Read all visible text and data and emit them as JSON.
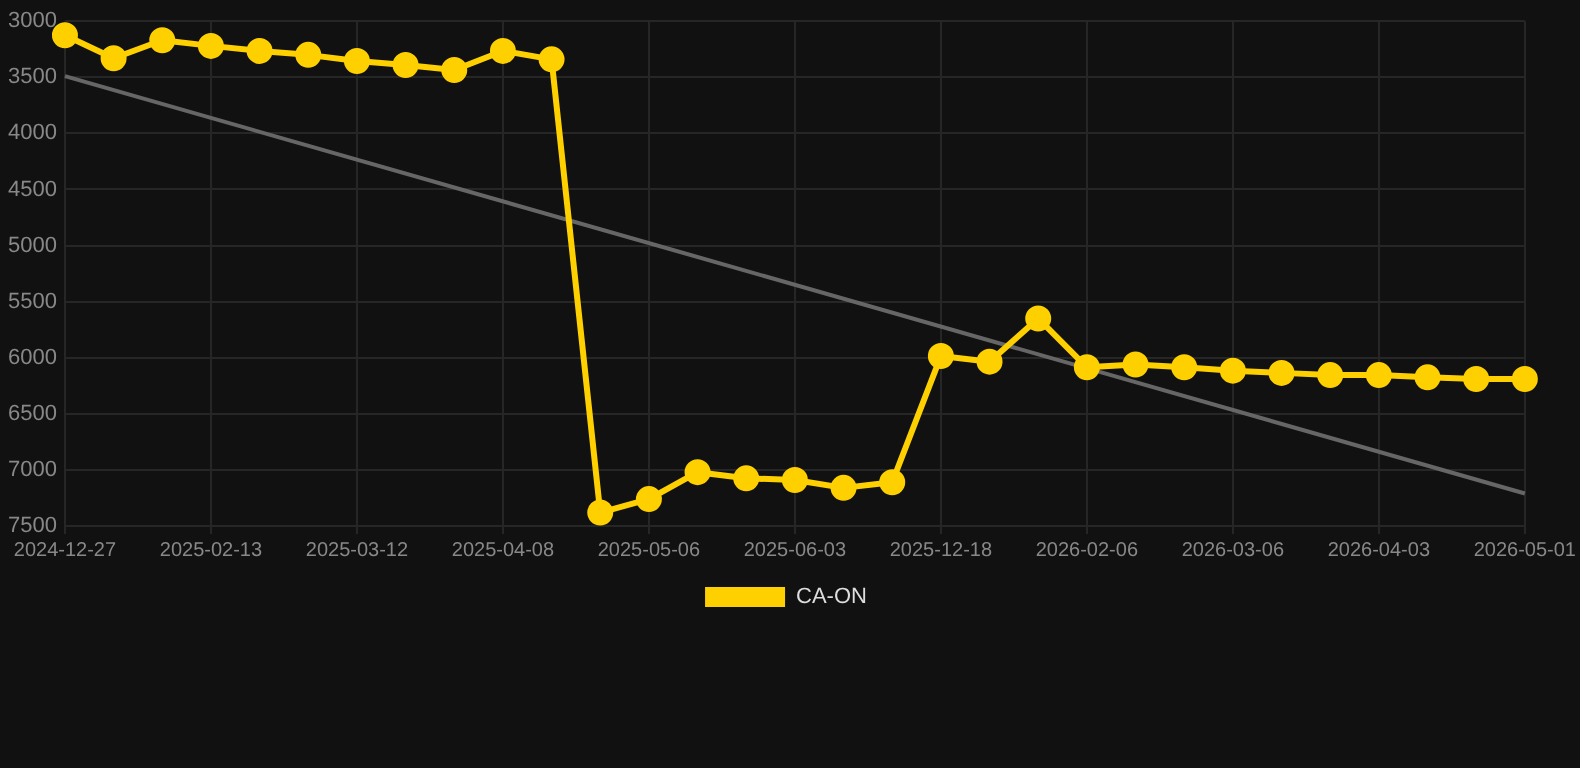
{
  "chart_data": {
    "type": "line",
    "categories": [
      "2024-12-27",
      null,
      null,
      "2025-02-13",
      null,
      null,
      "2025-03-12",
      null,
      null,
      "2025-04-08",
      null,
      null,
      "2025-05-06",
      null,
      null,
      "2025-06-03",
      null,
      null,
      "2025-12-18",
      null,
      null,
      "2026-02-06",
      null,
      null,
      "2026-03-06",
      null,
      null,
      "2026-04-03",
      null,
      null,
      "2026-05-01"
    ],
    "series": [
      {
        "name": "CA-ON",
        "color": "#ffd000",
        "marker": "circle",
        "values": [
          3125,
          3330,
          3170,
          3220,
          3265,
          3300,
          3355,
          3390,
          3435,
          3265,
          3340,
          7380,
          7260,
          7020,
          7075,
          7090,
          7160,
          7110,
          5985,
          6035,
          5650,
          6085,
          6060,
          6085,
          6115,
          6135,
          6155,
          6155,
          6175,
          6190,
          6190
        ]
      },
      {
        "type": "line",
        "color": "#666666",
        "marker": "none",
        "values": [
          3490,
          null,
          null,
          null,
          null,
          null,
          null,
          null,
          null,
          null,
          null,
          null,
          null,
          null,
          null,
          null,
          null,
          null,
          null,
          null,
          null,
          null,
          null,
          null,
          null,
          null,
          null,
          null,
          null,
          null,
          7210
        ]
      }
    ],
    "ylim": [
      7500,
      3000
    ],
    "yticks": [
      3000,
      3500,
      4000,
      4500,
      5000,
      5500,
      6000,
      6500,
      7000,
      7500
    ],
    "grid": true,
    "legend": "bottom"
  }
}
